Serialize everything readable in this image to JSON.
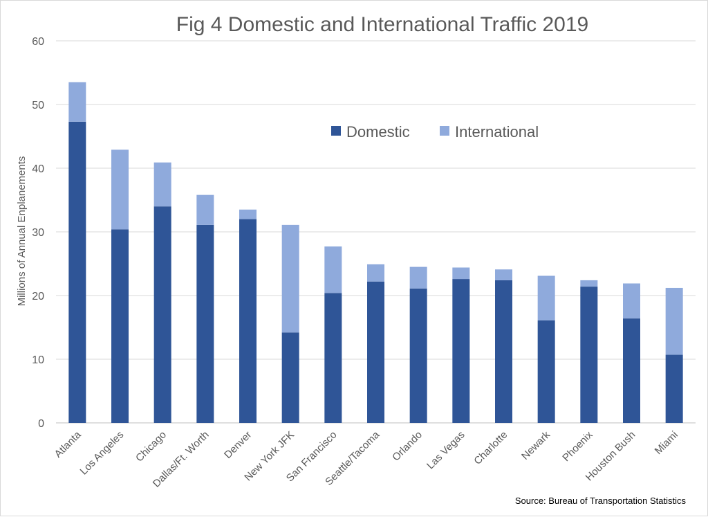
{
  "chart_data": {
    "type": "bar",
    "stacked": true,
    "title": "Fig 4 Domestic and International Traffic 2019",
    "xlabel": "",
    "ylabel": "Millions of Annual Enplanements",
    "ylim": [
      0,
      60
    ],
    "yticks": [
      0,
      10,
      20,
      30,
      40,
      50,
      60
    ],
    "grid": true,
    "legend_position": "top-right",
    "categories": [
      "Atlanta",
      "Los Angeles",
      "Chicago",
      "Dallas/Ft. Worth",
      "Denver",
      "New York JFK",
      "San Francisco",
      "Seattle/Tacoma",
      "Orlando",
      "Las Vegas",
      "Charlotte",
      "Newark",
      "Phoenix",
      "Houston Bush",
      "Miami"
    ],
    "series": [
      {
        "name": "Domestic",
        "color": "#2F5597",
        "values": [
          47.3,
          30.4,
          34.0,
          31.1,
          32.0,
          14.2,
          20.4,
          22.2,
          21.1,
          22.6,
          22.4,
          16.1,
          21.4,
          16.4,
          10.7
        ]
      },
      {
        "name": "International",
        "color": "#8FAADC",
        "values": [
          6.2,
          12.5,
          6.9,
          4.7,
          1.5,
          16.9,
          7.3,
          2.7,
          3.4,
          1.8,
          1.7,
          7.0,
          1.0,
          5.5,
          10.5
        ]
      }
    ],
    "source": "Source: Bureau of Transportation Statistics"
  }
}
